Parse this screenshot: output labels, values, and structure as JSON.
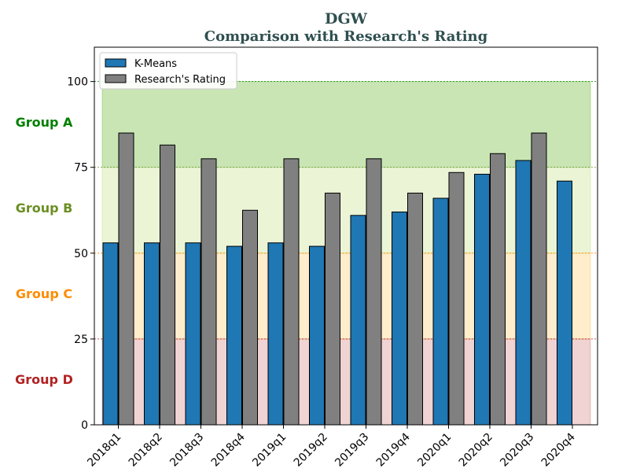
{
  "chart_data": {
    "type": "bar",
    "title": "DGW",
    "subtitle": "Comparison with Research's Rating",
    "xlabel": "",
    "ylabel": "",
    "ylim": [
      0,
      110
    ],
    "yticks": [
      0,
      25,
      50,
      75,
      100
    ],
    "categories": [
      "2018q1",
      "2018q2",
      "2018q3",
      "2018q4",
      "2019q1",
      "2019q2",
      "2019q3",
      "2019q4",
      "2020q1",
      "2020q2",
      "2020q3",
      "2020q4"
    ],
    "series": [
      {
        "name": "K-Means",
        "color": "#1f77b4",
        "values": [
          53,
          53,
          53,
          52,
          53,
          52,
          61,
          62,
          66,
          73,
          77,
          71
        ]
      },
      {
        "name": "Research's Rating",
        "color": "#808080",
        "values": [
          85,
          81.5,
          77.5,
          62.5,
          77.5,
          67.5,
          77.5,
          67.5,
          73.5,
          79,
          85,
          null
        ]
      }
    ],
    "bands": [
      {
        "label": "Group A",
        "from": 75,
        "to": 100,
        "fill": "#2ca02c",
        "text_color": "#008000",
        "line_color": "#008000"
      },
      {
        "label": "Group B",
        "from": 50,
        "to": 100,
        "fill": "#9acd32",
        "text_color": "#6b8e23",
        "line_color": "#6b8e23"
      },
      {
        "label": "Group C",
        "from": 25,
        "to": 50,
        "fill": "#ffa500",
        "text_color": "#ff8c00",
        "line_color": "#ff8c00"
      },
      {
        "label": "Group D",
        "from": 0,
        "to": 25,
        "fill": "#b22222",
        "text_color": "#b22222",
        "line_color": "#b22222"
      }
    ],
    "legend": {
      "position": "top-left"
    },
    "grid": false
  }
}
